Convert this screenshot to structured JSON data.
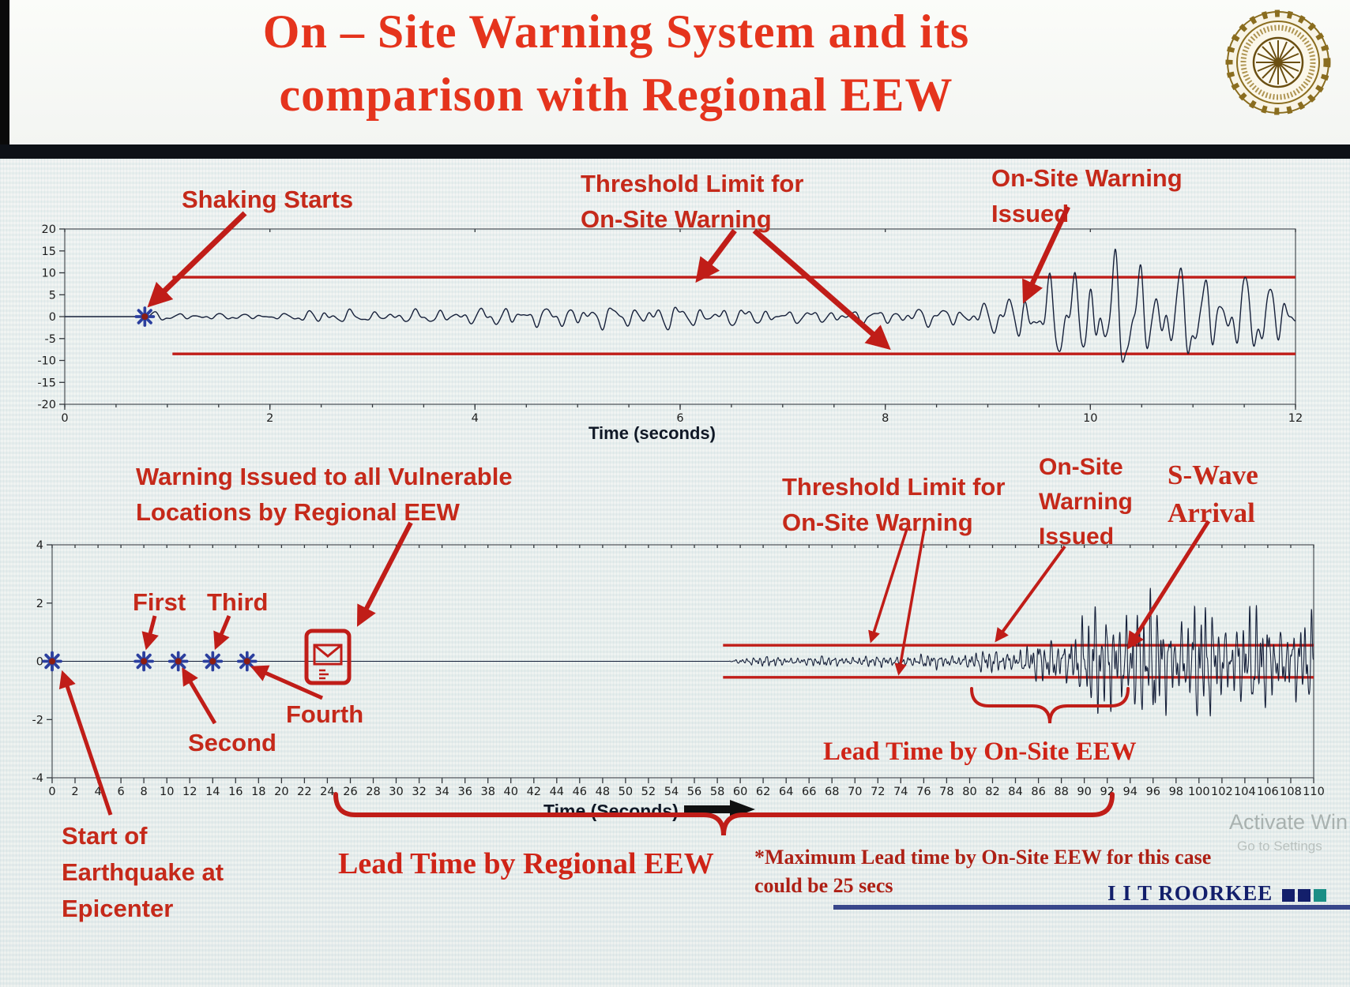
{
  "slide": {
    "title": [
      "On – Site Warning System and its",
      "comparison with Regional EEW"
    ]
  },
  "colors": {
    "title_red": "#e5341d",
    "annotation_red": "#c5291a",
    "threshold_red": "#c01d18",
    "waveform_navy": "#16203a",
    "marker_blue": "#2b3f9e",
    "brand_navy": "#131f6b",
    "teal_square": "#1b8f86",
    "divider_dark": "#0d1117"
  },
  "annotations": {
    "shaking_starts": "Shaking Starts",
    "threshold_top": [
      "Threshold Limit for",
      "On-Site Warning"
    ],
    "onsite_issued_top": [
      "On-Site Warning",
      "Issued"
    ],
    "regional_warning": [
      "Warning Issued to all Vulnerable",
      "Locations by Regional EEW"
    ],
    "threshold_bottom": [
      "Threshold Limit for",
      "On-Site Warning"
    ],
    "onsite_issued_bottom": [
      "On-Site",
      "Warning",
      "Issued"
    ],
    "s_wave": [
      "S-Wave",
      "Arrival"
    ],
    "p_labels": {
      "first": "First",
      "second": "Second",
      "third": "Third",
      "fourth": "Fourth"
    },
    "lead_onsite": "Lead Time by On-Site EEW",
    "lead_regional": "Lead Time by Regional EEW",
    "max_lead": [
      "*Maximum Lead time by On-Site EEW for this case",
      "could be 25 secs"
    ],
    "start_quake": [
      "Start of",
      "Earthquake at",
      "Epicenter"
    ]
  },
  "footer": {
    "brand": "I I T ROORKEE",
    "watermark_line1": "Activate Win",
    "watermark_line2": "Go to Settings"
  },
  "chart_data": [
    {
      "id": "onsite-accelerogram",
      "type": "line",
      "title": "",
      "xlabel": "Time (seconds)",
      "ylabel": "",
      "xlim": [
        0,
        12
      ],
      "x_ticks": [
        0,
        2,
        4,
        6,
        8,
        10,
        12
      ],
      "x_minor_tick_step": 0.5,
      "ylim": [
        -20,
        20
      ],
      "y_ticks": [
        20,
        15,
        10,
        5,
        0,
        -5,
        -10,
        -15,
        -20
      ],
      "grid": false,
      "legend": "none",
      "series": [
        {
          "name": "ground-acceleration",
          "color": "#16203a",
          "envelope": [
            [
              0,
              0
            ],
            [
              0.72,
              0
            ],
            [
              0.78,
              1.4
            ],
            [
              1.2,
              0.9
            ],
            [
              1.7,
              1.1
            ],
            [
              2.2,
              1.2
            ],
            [
              2.45,
              3.9
            ],
            [
              2.75,
              3.1
            ],
            [
              3.1,
              2.2
            ],
            [
              3.5,
              2.9
            ],
            [
              3.9,
              2.3
            ],
            [
              4.3,
              3.1
            ],
            [
              4.7,
              2.5
            ],
            [
              5.1,
              3.3
            ],
            [
              5.5,
              2.7
            ],
            [
              5.9,
              3.7
            ],
            [
              6.3,
              2.9
            ],
            [
              6.7,
              3.5
            ],
            [
              7.1,
              2.7
            ],
            [
              7.5,
              3.3
            ],
            [
              7.9,
              2.9
            ],
            [
              8.3,
              3.6
            ],
            [
              8.7,
              3.1
            ],
            [
              9.0,
              4.3
            ],
            [
              9.25,
              6.5
            ],
            [
              9.5,
              9.5
            ],
            [
              9.8,
              12
            ],
            [
              10.1,
              15
            ],
            [
              10.4,
              17
            ],
            [
              10.7,
              12
            ],
            [
              11.0,
              16
            ],
            [
              11.3,
              13
            ],
            [
              11.6,
              17
            ],
            [
              12,
              14
            ]
          ]
        }
      ],
      "thresholds": {
        "upper": 9,
        "lower": -8.5,
        "span": [
          1.05,
          12
        ],
        "color": "#c01d18",
        "label": "Threshold Limit for On-Site Warning"
      },
      "events": [
        {
          "label": "Shaking Starts",
          "t": 0.78
        },
        {
          "label": "On-Site Warning Issued",
          "t": 9.4
        }
      ]
    },
    {
      "id": "regional-comparison-seismogram",
      "type": "line",
      "title": "",
      "xlabel": "Time (Seconds)",
      "ylabel": "",
      "xlim": [
        0,
        110
      ],
      "x_ticks": [
        0,
        2,
        4,
        6,
        8,
        10,
        12,
        14,
        16,
        18,
        20,
        22,
        24,
        26,
        28,
        30,
        32,
        34,
        36,
        38,
        40,
        42,
        44,
        46,
        48,
        50,
        52,
        54,
        56,
        58,
        60,
        62,
        64,
        66,
        68,
        70,
        72,
        74,
        76,
        78,
        80,
        82,
        84,
        86,
        88,
        90,
        92,
        94,
        96,
        98,
        100,
        102,
        104,
        106,
        108,
        110
      ],
      "ylim": [
        -4,
        4
      ],
      "y_ticks": [
        4,
        2,
        0,
        -2,
        -4
      ],
      "grid": false,
      "legend": "none",
      "series": [
        {
          "name": "ground-motion",
          "color": "#16203a",
          "envelope": [
            [
              0,
              0
            ],
            [
              59,
              0
            ],
            [
              60,
              0.18
            ],
            [
              63,
              0.22
            ],
            [
              66,
              0.2
            ],
            [
              69,
              0.25
            ],
            [
              72,
              0.22
            ],
            [
              75,
              0.28
            ],
            [
              78,
              0.3
            ],
            [
              80,
              0.38
            ],
            [
              82,
              0.5
            ],
            [
              84,
              0.6
            ],
            [
              86,
              0.8
            ],
            [
              88,
              1.2
            ],
            [
              90,
              2.0
            ],
            [
              92,
              2.4
            ],
            [
              93.5,
              2.9
            ],
            [
              95,
              2.4
            ],
            [
              96.5,
              2.8
            ],
            [
              98,
              2.2
            ],
            [
              100,
              2.6
            ],
            [
              102,
              2.1
            ],
            [
              104,
              2.4
            ],
            [
              106,
              1.9
            ],
            [
              108,
              2.1
            ],
            [
              110,
              1.8
            ]
          ]
        }
      ],
      "thresholds": {
        "upper": 0.55,
        "lower": -0.55,
        "span": [
          58.5,
          110
        ],
        "color": "#c01d18",
        "label": "Threshold Limit for On-Site Warning"
      },
      "p_detections": [
        {
          "label": "Start of Earthquake at Epicenter",
          "t": 0
        },
        {
          "label": "First",
          "t": 8
        },
        {
          "label": "Second",
          "t": 11
        },
        {
          "label": "Third",
          "t": 14
        },
        {
          "label": "Fourth",
          "t": 17
        }
      ],
      "events": [
        {
          "label": "Warning Issued to all Vulnerable Locations by Regional EEW",
          "t": 24
        },
        {
          "label": "On-Site Warning Issued",
          "t": 82
        },
        {
          "label": "S-Wave Arrival",
          "t": 93.5
        }
      ],
      "lead_times": [
        {
          "label": "Lead Time by On-Site EEW",
          "from": 80,
          "to": 93.5
        },
        {
          "label": "Lead Time by Regional EEW",
          "from": 24,
          "to": 92
        }
      ],
      "note": "*Maximum Lead time by On-Site EEW for this case could be 25 secs"
    }
  ]
}
